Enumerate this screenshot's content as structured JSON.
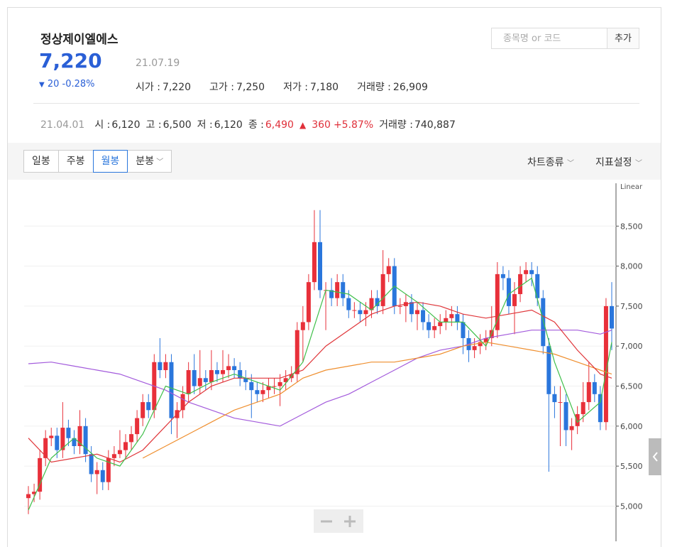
{
  "header": {
    "name": "정상제이엘에스",
    "price": "7,220",
    "change": "20",
    "change_pct": "-0.28%",
    "date": "21.07.19",
    "stats": [
      {
        "label": "시가 :",
        "value": "7,220"
      },
      {
        "label": "고가 :",
        "value": "7,250"
      },
      {
        "label": "저가 :",
        "value": "7,180"
      },
      {
        "label": "거래량 :",
        "value": "26,909"
      }
    ],
    "search_placeholder": "종목명 or 코드",
    "add_button": "추가"
  },
  "summary": {
    "date": "21.04.01",
    "items": [
      {
        "label": "시 :",
        "value": "6,120"
      },
      {
        "label": "고 :",
        "value": "6,500"
      },
      {
        "label": "저 :",
        "value": "6,120"
      },
      {
        "label": "종 :",
        "value": "6,490"
      }
    ],
    "change": "360",
    "change_pct": "+5.87%",
    "volume_label": "거래량 :",
    "volume": "740,887"
  },
  "tabs": [
    "일봉",
    "주봉",
    "월봉",
    "분봉"
  ],
  "active_tab": 2,
  "menu": [
    "차트종류",
    "지표설정"
  ],
  "chart_data": {
    "type": "candlestick",
    "scale_label": "Linear",
    "up_color": "#e8303a",
    "down_color": "#2a76dc",
    "open": [
      5100,
      5150,
      5180,
      5600,
      5850,
      5880,
      5700,
      5980,
      5850,
      5750,
      6000,
      5650,
      5400,
      5450,
      5300,
      5600,
      5650,
      5700,
      5800,
      5900,
      6100,
      6300,
      6200,
      6800,
      6700,
      6800,
      6100,
      6200,
      6400,
      6700,
      6500,
      6600,
      6550,
      6700,
      6650,
      6700,
      6750,
      6700,
      6600,
      6550,
      6450,
      6400,
      6450,
      6500,
      6500,
      6550,
      6600,
      6650,
      7200,
      7300,
      7800,
      8300,
      7700,
      7700,
      7600,
      7800,
      7600,
      7450,
      7450,
      7400,
      7450,
      7600,
      7500,
      7900,
      8000,
      7500,
      7500,
      7550,
      7400,
      7450,
      7300,
      7200,
      7250,
      7300,
      7350,
      7400,
      7300,
      7100,
      6950,
      7000,
      7050,
      7100,
      7200,
      7900,
      7850,
      7500,
      7650,
      7900,
      7950,
      7900,
      7600,
      7000,
      6400,
      6300,
      6300,
      5950,
      6000,
      6150,
      6300,
      6550,
      6400,
      6050,
      7500
    ],
    "high": [
      5250,
      5280,
      5700,
      5950,
      5980,
      5980,
      6300,
      6080,
      5950,
      6200,
      6100,
      5750,
      5550,
      5550,
      5700,
      5750,
      5950,
      5900,
      6000,
      6200,
      6400,
      6400,
      6900,
      7100,
      6900,
      6900,
      6300,
      6500,
      6800,
      6900,
      6950,
      6700,
      6950,
      6800,
      6950,
      6900,
      6850,
      6800,
      6700,
      6650,
      6550,
      6550,
      6600,
      6600,
      6650,
      6700,
      6750,
      7300,
      7500,
      7900,
      8700,
      8700,
      7800,
      7850,
      7900,
      7900,
      7700,
      7550,
      7550,
      7550,
      7700,
      7700,
      8200,
      8100,
      8100,
      7600,
      7650,
      7650,
      7550,
      7550,
      7400,
      7350,
      7400,
      7450,
      7500,
      7500,
      7400,
      7200,
      7100,
      7150,
      7200,
      7500,
      8050,
      8000,
      7950,
      7800,
      8000,
      8050,
      8050,
      8000,
      7700,
      7100,
      6500,
      6500,
      6400,
      6100,
      6250,
      6550,
      6800,
      6650,
      6500,
      7600,
      7800
    ],
    "low": [
      4900,
      5050,
      5080,
      5500,
      5750,
      5600,
      5600,
      5750,
      5650,
      5650,
      5550,
      5300,
      5150,
      5200,
      5200,
      5500,
      5600,
      5600,
      5700,
      5800,
      6000,
      6100,
      6100,
      6600,
      6600,
      5900,
      5850,
      6100,
      6300,
      6400,
      6400,
      6450,
      6450,
      6550,
      6550,
      6600,
      6600,
      6500,
      6450,
      6100,
      6300,
      6300,
      6350,
      6400,
      6250,
      6450,
      6550,
      6550,
      6800,
      7200,
      7700,
      7600,
      7200,
      7500,
      7500,
      7500,
      7350,
      7350,
      7300,
      7250,
      7350,
      7400,
      7400,
      7800,
      7400,
      7400,
      7300,
      7300,
      7200,
      7200,
      7100,
      7100,
      7150,
      7200,
      7250,
      7200,
      6900,
      6800,
      6850,
      6900,
      6950,
      7000,
      7100,
      7700,
      7400,
      7150,
      7550,
      7800,
      7750,
      7500,
      6900,
      5430,
      6100,
      5750,
      5750,
      5700,
      5900,
      6050,
      6200,
      6300,
      5950,
      5950,
      6950
    ],
    "close": [
      5150,
      5180,
      5600,
      5850,
      5880,
      5700,
      5980,
      5850,
      5750,
      6000,
      5650,
      5400,
      5450,
      5300,
      5600,
      5650,
      5700,
      5800,
      5900,
      6100,
      6300,
      6200,
      6800,
      6700,
      6800,
      6100,
      6200,
      6400,
      6700,
      6500,
      6600,
      6550,
      6700,
      6650,
      6700,
      6750,
      6700,
      6600,
      6550,
      6450,
      6400,
      6450,
      6500,
      6500,
      6550,
      6600,
      6650,
      7200,
      7300,
      7800,
      8300,
      7700,
      7700,
      7600,
      7800,
      7600,
      7450,
      7450,
      7400,
      7450,
      7600,
      7500,
      7900,
      8000,
      7500,
      7500,
      7550,
      7400,
      7450,
      7300,
      7200,
      7250,
      7300,
      7350,
      7400,
      7300,
      7100,
      6950,
      7000,
      7050,
      7100,
      7200,
      7900,
      7850,
      7500,
      7650,
      7900,
      7950,
      7900,
      7600,
      7000,
      6400,
      6300,
      6300,
      5950,
      6000,
      6150,
      6300,
      6550,
      6400,
      6050,
      7500,
      7220
    ],
    "lines": [
      {
        "color": "#a35bdc",
        "x": [
          0,
          4,
          8,
          12,
          16,
          20,
          24,
          28,
          32,
          36,
          40,
          44,
          48,
          52,
          56,
          60,
          64,
          68,
          72,
          76,
          80,
          84,
          88,
          92,
          96,
          100,
          102
        ],
        "values": [
          6780,
          6800,
          6750,
          6700,
          6650,
          6550,
          6450,
          6300,
          6200,
          6100,
          6050,
          6000,
          6150,
          6300,
          6400,
          6550,
          6700,
          6850,
          6950,
          7000,
          7100,
          7150,
          7200,
          7200,
          7200,
          7150,
          7200
        ]
      },
      {
        "color": "#ef8f2f",
        "x": [
          20,
          24,
          28,
          32,
          36,
          40,
          44,
          48,
          52,
          56,
          60,
          64,
          68,
          72,
          76,
          80,
          84,
          88,
          92,
          96,
          100,
          102
        ],
        "values": [
          5600,
          5750,
          5900,
          6050,
          6200,
          6300,
          6400,
          6600,
          6700,
          6750,
          6800,
          6800,
          6850,
          6900,
          7000,
          7050,
          7000,
          6950,
          6900,
          6800,
          6700,
          6650
        ]
      },
      {
        "color": "#e0363a",
        "x": [
          0,
          4,
          8,
          12,
          16,
          20,
          24,
          28,
          32,
          36,
          40,
          44,
          48,
          52,
          56,
          60,
          64,
          68,
          72,
          76,
          80,
          84,
          88,
          92,
          96,
          100,
          102
        ],
        "values": [
          5850,
          5550,
          5600,
          5650,
          5550,
          5700,
          6000,
          6300,
          6500,
          6600,
          6600,
          6600,
          6700,
          7000,
          7200,
          7400,
          7500,
          7550,
          7500,
          7400,
          7350,
          7400,
          7450,
          7300,
          6950,
          6650,
          6600
        ]
      },
      {
        "color": "#3fbf4a",
        "x": [
          0,
          4,
          8,
          12,
          16,
          20,
          24,
          28,
          32,
          36,
          40,
          44,
          48,
          52,
          56,
          60,
          64,
          68,
          72,
          76,
          80,
          84,
          88,
          92,
          96,
          100,
          102
        ],
        "values": [
          4950,
          5600,
          5850,
          5600,
          5500,
          5900,
          6500,
          6400,
          6550,
          6650,
          6550,
          6450,
          6800,
          7700,
          7650,
          7450,
          7750,
          7550,
          7300,
          7300,
          7000,
          7650,
          7850,
          6800,
          6050,
          6300,
          7050
        ]
      }
    ],
    "ylim": [
      4560,
      9000
    ],
    "yticks": [
      {
        "value": 5000,
        "label": "5,000"
      },
      {
        "value": 5500,
        "label": "5,500"
      },
      {
        "value": 6000,
        "label": "6,000"
      },
      {
        "value": 6500,
        "label": "6,500"
      },
      {
        "value": 7000,
        "label": "7,000"
      },
      {
        "value": 7500,
        "label": "7,500"
      },
      {
        "value": 8000,
        "label": "8,000"
      },
      {
        "value": 8500,
        "label": "8,500"
      }
    ]
  }
}
